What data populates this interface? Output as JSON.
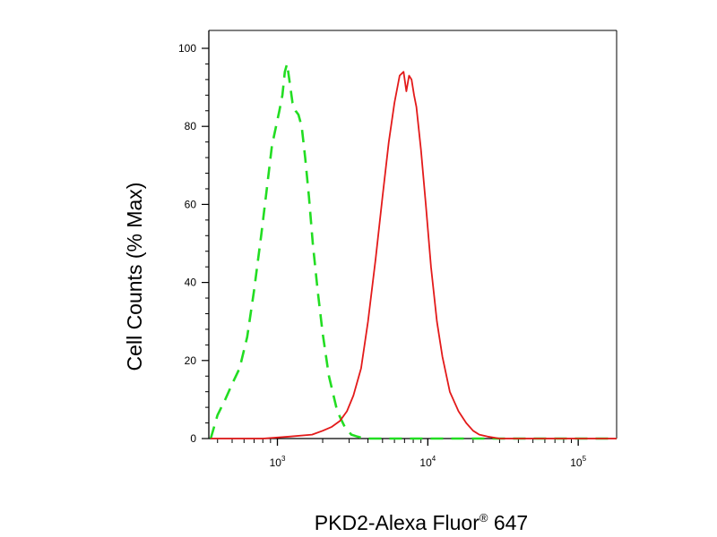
{
  "chart_data": {
    "type": "line",
    "title": "",
    "xlabel": "PKD2-Alexa Fluor",
    "xlabel_sup": "®",
    "xlabel_suffix": " 647",
    "ylabel": "Cell Counts (% Max)",
    "x_scale": "log",
    "xlim": [
      350,
      180000
    ],
    "ylim": [
      0,
      100
    ],
    "y_ticks": [
      0,
      20,
      40,
      60,
      80,
      100
    ],
    "x_ticks": [
      {
        "value": 1000,
        "base": "10",
        "exp": "3"
      },
      {
        "value": 10000,
        "base": "10",
        "exp": "4"
      },
      {
        "value": 100000,
        "base": "10",
        "exp": "5"
      }
    ],
    "grid": false,
    "series": [
      {
        "color": "#22dd22",
        "style": "dashed",
        "x": [
          360,
          400,
          450,
          500,
          560,
          630,
          700,
          780,
          850,
          920,
          980,
          1030,
          1080,
          1120,
          1160,
          1200,
          1260,
          1320,
          1380,
          1450,
          1530,
          1620,
          1720,
          1850,
          2000,
          2200,
          2500,
          2800,
          3100,
          3400,
          3800,
          4500,
          6000,
          10000,
          20000,
          40000,
          80000,
          180000
        ],
        "y": [
          0,
          6,
          10,
          14,
          18,
          26,
          38,
          52,
          64,
          75,
          80,
          84,
          88,
          94,
          96,
          92,
          86,
          84,
          83,
          80,
          72,
          62,
          50,
          38,
          27,
          16,
          7,
          3,
          1,
          0.5,
          0,
          0,
          0,
          0,
          0,
          0,
          0,
          0
        ]
      },
      {
        "color": "#e31a1a",
        "style": "solid",
        "x": [
          360,
          800,
          1200,
          1700,
          2000,
          2300,
          2600,
          2900,
          3200,
          3600,
          4000,
          4500,
          5000,
          5500,
          6000,
          6500,
          6900,
          7200,
          7500,
          7800,
          8100,
          8400,
          9000,
          9700,
          10500,
          11500,
          12500,
          14000,
          16000,
          18000,
          20000,
          22000,
          25000,
          30000,
          40000,
          60000,
          100000,
          180000
        ],
        "y": [
          0,
          0,
          0.5,
          1,
          2,
          3,
          4.5,
          7,
          11,
          18,
          30,
          46,
          62,
          76,
          86,
          93,
          94,
          89,
          93,
          92,
          88,
          85,
          74,
          60,
          44,
          30,
          21,
          12,
          7,
          4,
          2,
          1,
          0.5,
          0,
          0,
          0,
          0,
          0
        ]
      }
    ]
  }
}
